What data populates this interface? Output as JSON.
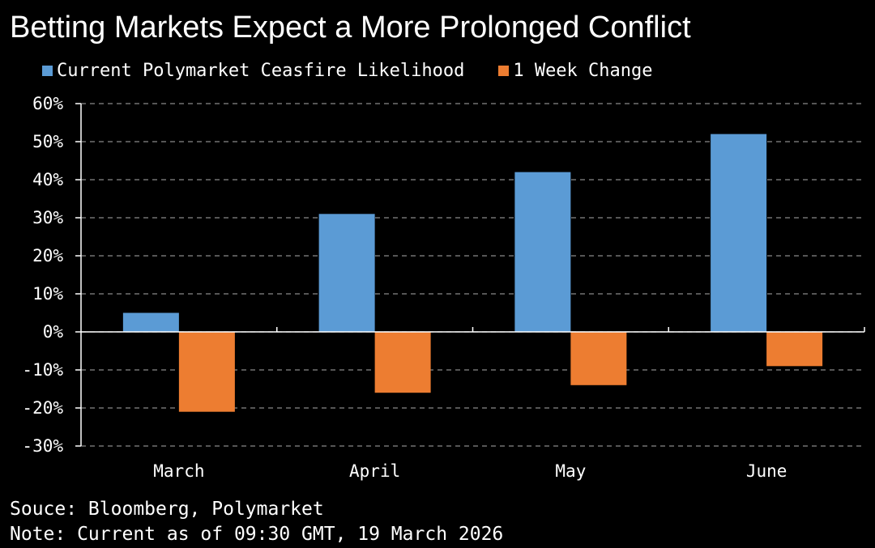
{
  "colors": {
    "background": "#000000",
    "text": "#ffffff",
    "grid": "#8a8a8a",
    "series_current": "#5b9bd5",
    "series_change": "#ed7d31"
  },
  "legend": [
    {
      "label": "Current Polymarket Ceasfire Likelihood",
      "color": "#5b9bd5"
    },
    {
      "label": "1 Week Change",
      "color": "#ed7d31"
    }
  ],
  "footer": {
    "source": "Souce: Bloomberg, Polymarket",
    "note": "Note: Current as of 09:30 GMT, 19 March 2026"
  },
  "chart_data": {
    "type": "bar",
    "title": "Betting Markets Expect a More Prolonged Conflict",
    "categories": [
      "March",
      "April",
      "May",
      "June"
    ],
    "series": [
      {
        "name": "Current Polymarket Ceasfire Likelihood",
        "values": [
          5,
          31,
          42,
          52
        ],
        "color": "#5b9bd5"
      },
      {
        "name": "1 Week Change",
        "values": [
          -21,
          -16,
          -14,
          -9
        ],
        "color": "#ed7d31"
      }
    ],
    "ylim": [
      -30,
      60
    ],
    "yticks": [
      60,
      50,
      40,
      30,
      20,
      10,
      0,
      -10,
      -20,
      -30
    ],
    "ytick_labels": [
      "60%",
      "50%",
      "40%",
      "30%",
      "20%",
      "10%",
      "0%",
      "-10%",
      "-20%",
      "-30%"
    ],
    "xlabel": "",
    "ylabel": "",
    "grid": true,
    "legend_position": "top"
  }
}
